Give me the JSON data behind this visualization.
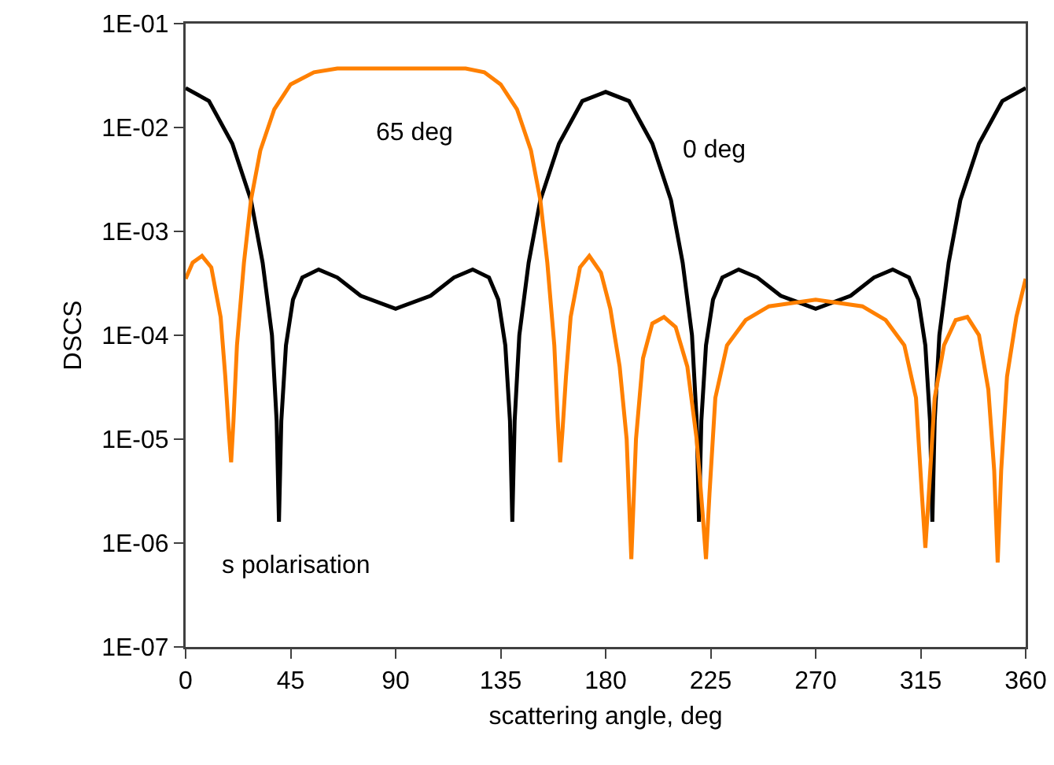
{
  "chart_data": {
    "type": "line",
    "xlabel": "scattering angle, deg",
    "ylabel": "DSCS",
    "log": "y",
    "grid": false,
    "legend": false,
    "marker": "none",
    "line_style": "solid",
    "xlim": [
      0,
      360
    ],
    "xticks": [
      0,
      45,
      90,
      135,
      180,
      225,
      270,
      315,
      360
    ],
    "ylim": [
      1e-07,
      0.1
    ],
    "yticks": [
      {
        "value": 1e-07,
        "label": "1E-07"
      },
      {
        "value": 1e-06,
        "label": "1E-06"
      },
      {
        "value": 1e-05,
        "label": "1E-05"
      },
      {
        "value": 0.0001,
        "label": "1E-04"
      },
      {
        "value": 0.001,
        "label": "1E-03"
      },
      {
        "value": 0.01,
        "label": "1E-02"
      },
      {
        "value": 0.1,
        "label": "1E-01"
      }
    ],
    "annotations": [
      "s polarisation"
    ],
    "series": [
      {
        "name": "0 deg",
        "color": "#000000",
        "x": [
          0,
          10,
          20,
          28,
          33,
          37,
          39,
          40,
          41,
          43,
          46,
          50,
          57,
          65,
          75,
          90,
          105,
          115,
          123,
          130,
          134,
          137,
          139,
          140,
          141,
          143,
          147,
          152,
          160,
          170,
          180,
          190,
          200,
          208,
          213,
          217,
          219,
          220,
          221,
          223,
          226,
          230,
          237,
          245,
          255,
          270,
          285,
          295,
          303,
          310,
          314,
          317,
          319,
          320,
          321,
          323,
          327,
          332,
          340,
          350,
          360
        ],
        "values": [
          0.024,
          0.018,
          0.007,
          0.002,
          0.0005,
          0.0001,
          1.5e-05,
          1.6e-06,
          1.5e-05,
          8e-05,
          0.00022,
          0.00036,
          0.00043,
          0.00036,
          0.00024,
          0.00018,
          0.00024,
          0.00036,
          0.00043,
          0.00036,
          0.00022,
          8e-05,
          1.5e-05,
          1.6e-06,
          1.5e-05,
          0.0001,
          0.0005,
          0.002,
          0.007,
          0.018,
          0.022,
          0.018,
          0.007,
          0.002,
          0.0005,
          0.0001,
          1.5e-05,
          1.6e-06,
          1.5e-05,
          8e-05,
          0.00022,
          0.00036,
          0.00043,
          0.00036,
          0.00024,
          0.00018,
          0.00024,
          0.00036,
          0.00043,
          0.00036,
          0.00022,
          8e-05,
          1.5e-05,
          1.6e-06,
          1.5e-05,
          0.0001,
          0.0005,
          0.002,
          0.007,
          0.018,
          0.024
        ]
      },
      {
        "name": "65 deg",
        "color": "#ff8000",
        "x": [
          0,
          3,
          7,
          11,
          15,
          17,
          18.5,
          19.5,
          20.5,
          22,
          25,
          28,
          32,
          38,
          45,
          55,
          65,
          90,
          120,
          128,
          135,
          142,
          148,
          152,
          155,
          158,
          159.5,
          160.5,
          161.5,
          163,
          165,
          169,
          173,
          178,
          182,
          186,
          189,
          191,
          193,
          196,
          200,
          205,
          210,
          215,
          219,
          221.5,
          223,
          224.5,
          227,
          232,
          240,
          250,
          270,
          290,
          300,
          308,
          313,
          315.5,
          317,
          318.5,
          321,
          325,
          330,
          335,
          340,
          344,
          346.5,
          348,
          349.5,
          352,
          356,
          360
        ],
        "values": [
          0.00035,
          0.0005,
          0.00058,
          0.00045,
          0.00015,
          4e-05,
          1.2e-05,
          6e-06,
          1.5e-05,
          8e-05,
          0.0005,
          0.002,
          0.006,
          0.015,
          0.026,
          0.034,
          0.037,
          0.037,
          0.037,
          0.034,
          0.026,
          0.015,
          0.006,
          0.002,
          0.0005,
          8e-05,
          1.5e-05,
          6e-06,
          1.2e-05,
          4e-05,
          0.00015,
          0.00045,
          0.00058,
          0.0004,
          0.00018,
          5e-05,
          1e-05,
          7e-07,
          1e-05,
          6e-05,
          0.00013,
          0.00015,
          0.00012,
          5e-05,
          1e-05,
          2e-06,
          7e-07,
          3e-06,
          2.5e-05,
          8e-05,
          0.00014,
          0.00019,
          0.00022,
          0.00019,
          0.00014,
          8e-05,
          2.5e-05,
          3e-06,
          9e-07,
          3e-06,
          2.5e-05,
          8e-05,
          0.00014,
          0.00015,
          0.0001,
          3e-05,
          5e-06,
          6.5e-07,
          5e-06,
          4e-05,
          0.00015,
          0.00035
        ]
      }
    ]
  }
}
